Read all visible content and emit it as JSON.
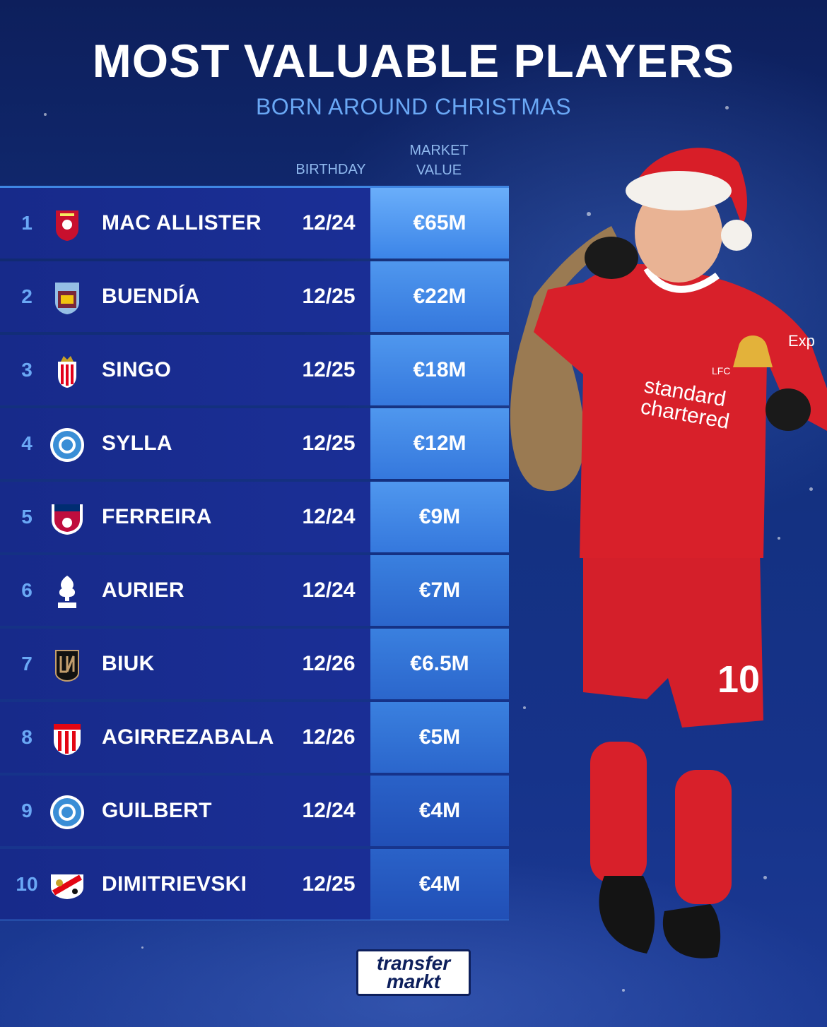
{
  "header": {
    "title": "MOST VALUABLE PLAYERS",
    "subtitle": "BORN AROUND CHRISTMAS"
  },
  "columns": {
    "birthday": "BIRTHDAY",
    "market_value_line1": "MARKET",
    "market_value_line2": "VALUE"
  },
  "colors": {
    "accent": "#3f86e3",
    "subtitle": "#6aa8f5",
    "value_cell_top": "#58a2f3",
    "value_cell_bottom": "#1e48b8"
  },
  "rows": [
    {
      "rank": "1",
      "crest": "liverpool-crest",
      "name": "MAC ALLISTER",
      "birthday": "12/24",
      "value": "€65M"
    },
    {
      "rank": "2",
      "crest": "aston-villa-crest",
      "name": "BUENDÍA",
      "birthday": "12/25",
      "value": "€22M"
    },
    {
      "rank": "3",
      "crest": "monaco-crest",
      "name": "SINGO",
      "birthday": "12/25",
      "value": "€18M"
    },
    {
      "rank": "4",
      "crest": "strasbourg-crest",
      "name": "SYLLA",
      "birthday": "12/25",
      "value": "€12M"
    },
    {
      "rank": "5",
      "crest": "fc-dallas-crest",
      "name": "FERREIRA",
      "birthday": "12/24",
      "value": "€9M"
    },
    {
      "rank": "6",
      "crest": "nottingham-forest-crest",
      "name": "AURIER",
      "birthday": "12/24",
      "value": "€7M"
    },
    {
      "rank": "7",
      "crest": "lafc-crest",
      "name": "BIUK",
      "birthday": "12/26",
      "value": "€6.5M"
    },
    {
      "rank": "8",
      "crest": "athletic-bilbao-crest",
      "name": "AGIRREZABALA",
      "birthday": "12/26",
      "value": "€5M"
    },
    {
      "rank": "9",
      "crest": "strasbourg-crest",
      "name": "GUILBERT",
      "birthday": "12/24",
      "value": "€4M"
    },
    {
      "rank": "10",
      "crest": "rayo-vallecano-crest",
      "name": "DIMITRIEVSKI",
      "birthday": "12/25",
      "value": "€4M"
    }
  ],
  "player_image": {
    "shirt_sponsor_line1": "standard",
    "shirt_sponsor_line2": "chartered",
    "shirt_number": "10",
    "sleeve_text": "Exp",
    "club_badge": "LFC"
  },
  "footer": {
    "logo_line1": "transfer",
    "logo_line2": "markt"
  }
}
